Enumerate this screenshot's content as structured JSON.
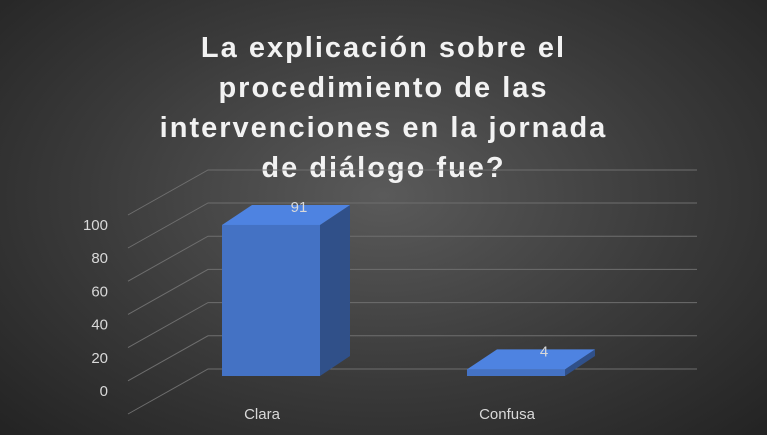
{
  "chart_data": {
    "type": "bar3d",
    "title": "La explicación sobre el procedimiento de las intervenciones en la jornada de diálogo fue?",
    "categories": [
      "Clara",
      "Confusa"
    ],
    "values": [
      91,
      4
    ],
    "color": "#4472c4",
    "ylim": [
      0,
      100
    ],
    "yticks": [
      0,
      20,
      40,
      60,
      80,
      100
    ],
    "grid": true
  }
}
